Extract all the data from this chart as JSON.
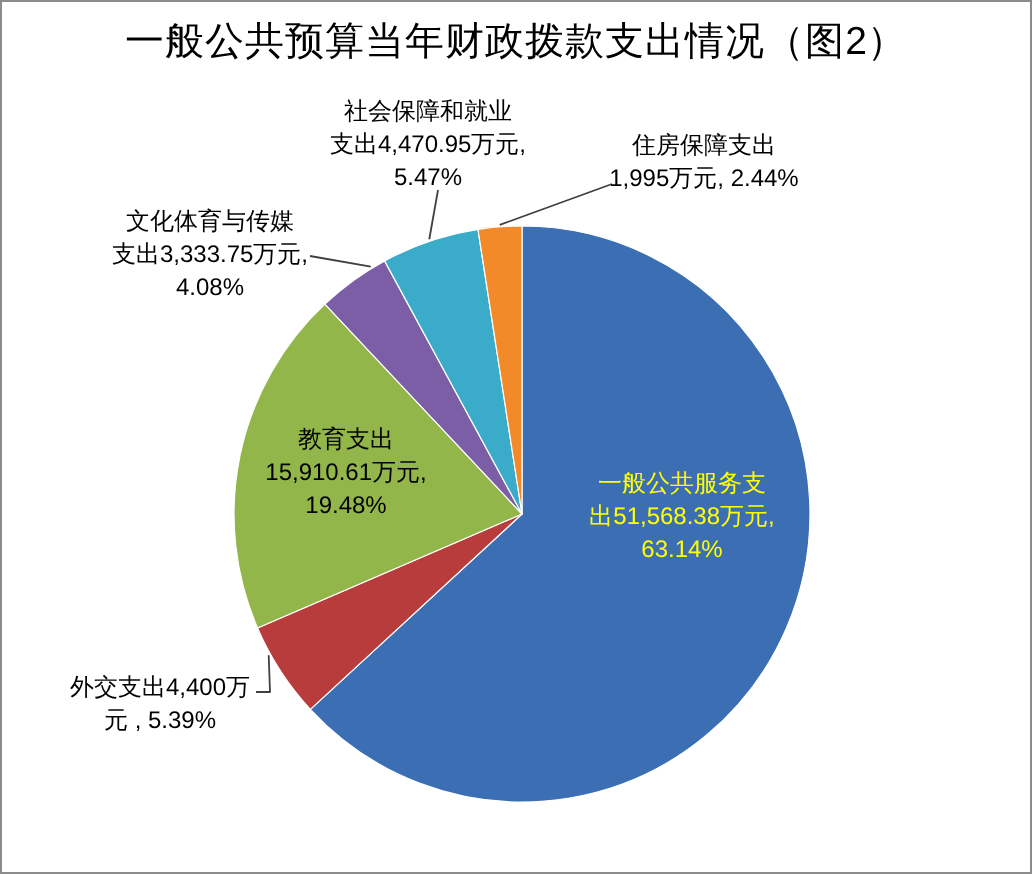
{
  "chart_data": {
    "type": "pie",
    "title": "一般公共预算当年财政拨款支出情况（图2）",
    "categories": [
      "一般公共服务支出",
      "外交支出",
      "教育支出",
      "文化体育与传媒支出",
      "社会保障和就业支出",
      "住房保障支出"
    ],
    "values": [
      51568.38,
      4400,
      15910.61,
      3333.75,
      4470.95,
      1995
    ],
    "value_labels": [
      "51,568.38万元, 63.14%",
      "4,400万元 , 5.39%",
      "15,910.61万元, 19.48%",
      "3,333.75万元, 4.08%",
      "4,470.95万元, 5.47%",
      "1,995万元, 2.44%"
    ],
    "colors": [
      "#3c6eb4",
      "#b83c3c",
      "#93b64a",
      "#7b5ea6",
      "#3aabc9",
      "#f28a2a"
    ]
  }
}
